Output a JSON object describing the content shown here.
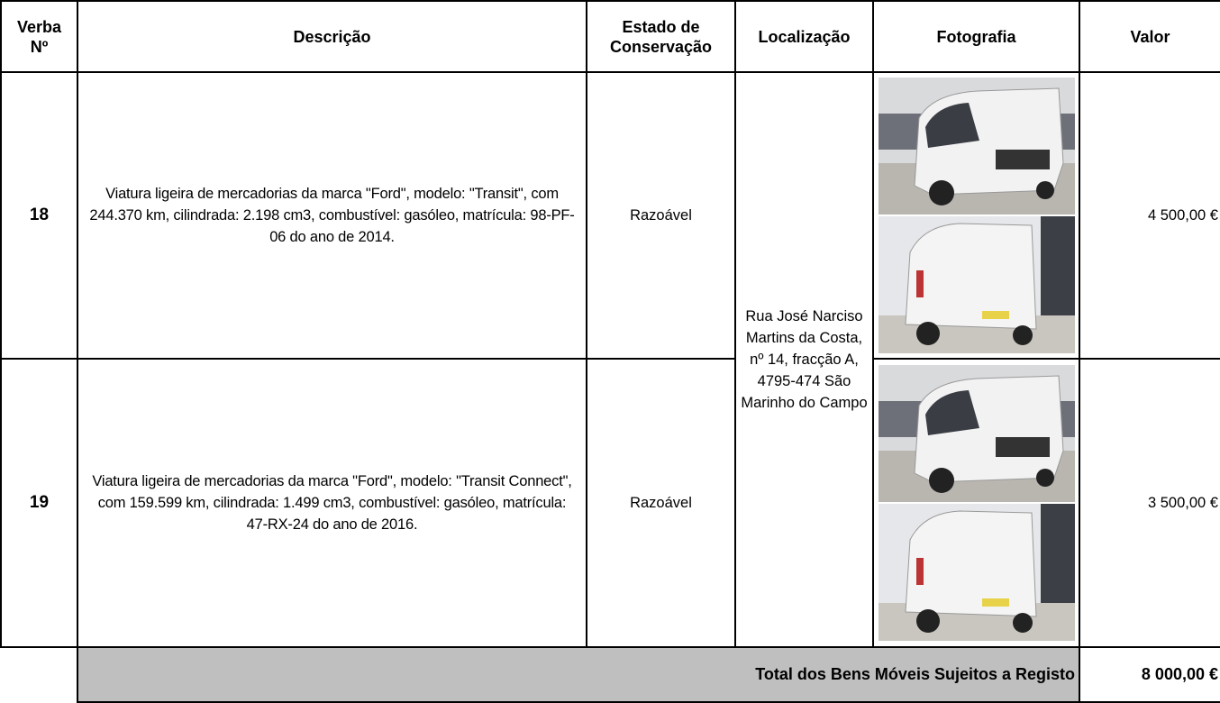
{
  "table": {
    "header": [
      "Verba Nº",
      "Descrição",
      "Estado de Conservação",
      "Localização",
      "Fotografia",
      "Valor"
    ],
    "rows": [
      {
        "verba": "18",
        "descricao": "Viatura ligeira de mercadorias da marca \"Ford\", modelo: \"Transit\", com 244.370 km, cilindrada: 2.198 cm3, combustível: gasóleo, matrícula: 98-PF-06 do ano de 2014.",
        "estado": "Razoável",
        "valor": "4 500,00 €"
      },
      {
        "verba": "19",
        "descricao": "Viatura ligeira de mercadorias da marca \"Ford\", modelo: \"Transit Connect\", com 159.599 km, cilindrada: 1.499 cm3, combustível: gasóleo, matrícula: 47-RX-24 do ano de 2016.",
        "estado": "Razoável",
        "valor": "3 500,00 €"
      }
    ],
    "localizacao": "Rua José Narciso Martins da Costa, nº 14, fracção A, 4795-474 São Marinho do Campo",
    "total": {
      "label": "Total dos Bens Móveis Sujeitos a Registo",
      "value": "8 000,00 €"
    }
  }
}
